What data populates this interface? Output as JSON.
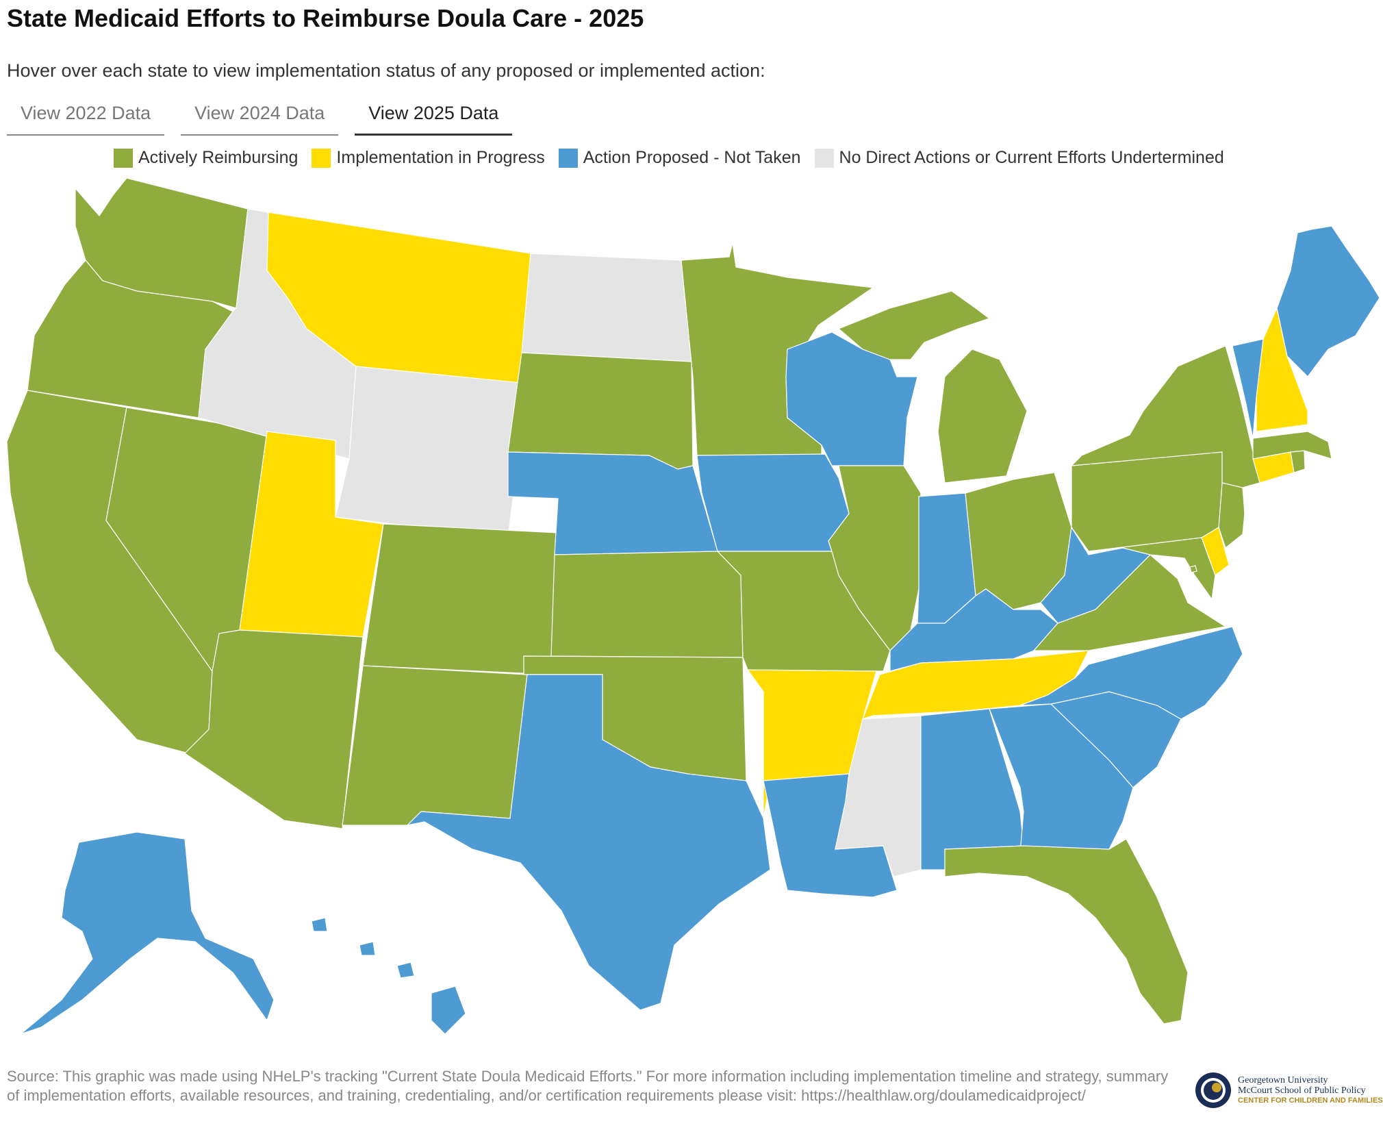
{
  "title": "State Medicaid Efforts to Reimburse Doula Care - 2025",
  "subtitle": "Hover over each state to view implementation status of any proposed or implemented action:",
  "tabs": [
    {
      "label": "View 2022 Data",
      "active": false
    },
    {
      "label": "View 2024 Data",
      "active": false
    },
    {
      "label": "View 2025 Data",
      "active": true
    }
  ],
  "legend": [
    {
      "key": "active",
      "label": "Actively Reimbursing",
      "color": "#8fac3e"
    },
    {
      "key": "progress",
      "label": "Implementation in Progress",
      "color": "#ffdd00"
    },
    {
      "key": "proposed",
      "label": "Action Proposed - Not Taken",
      "color": "#4e9bd4"
    },
    {
      "key": "none",
      "label": "No Direct Actions or Current Efforts Undertermined",
      "color": "#e4e4e5"
    }
  ],
  "states": {
    "WA": "active",
    "OR": "active",
    "CA": "active",
    "NV": "active",
    "ID": "none",
    "MT": "progress",
    "WY": "none",
    "UT": "progress",
    "AZ": "active",
    "CO": "active",
    "NM": "active",
    "ND": "none",
    "SD": "active",
    "NE": "proposed",
    "KS": "active",
    "OK": "active",
    "TX": "proposed",
    "MN": "active",
    "IA": "proposed",
    "MO": "active",
    "AR": "progress",
    "LA": "proposed",
    "WI": "proposed",
    "IL": "active",
    "MI": "active",
    "IN": "proposed",
    "OH": "active",
    "KY": "proposed",
    "TN": "progress",
    "MS": "none",
    "AL": "proposed",
    "GA": "proposed",
    "FL": "active",
    "SC": "proposed",
    "NC": "proposed",
    "VA": "active",
    "WV": "proposed",
    "MD": "active",
    "DE": "progress",
    "NJ": "active",
    "PA": "active",
    "NY": "active",
    "CT": "progress",
    "RI": "active",
    "MA": "active",
    "VT": "proposed",
    "NH": "progress",
    "ME": "proposed",
    "AK": "proposed",
    "HI": "proposed",
    "DC": "active"
  },
  "source": "Source: This graphic was made using NHeLP's tracking \"Current State Doula Medicaid Efforts.\" For more information including implementation timeline and strategy, summary of implementation efforts, available resources, and training, credentialing, and/or certification requirements please visit: https://healthlaw.org/doulamedicaidproject/",
  "logo": {
    "line1": "Georgetown University",
    "line2": "McCourt School of Public Policy",
    "line3": "CENTER FOR CHILDREN AND FAMILIES"
  }
}
